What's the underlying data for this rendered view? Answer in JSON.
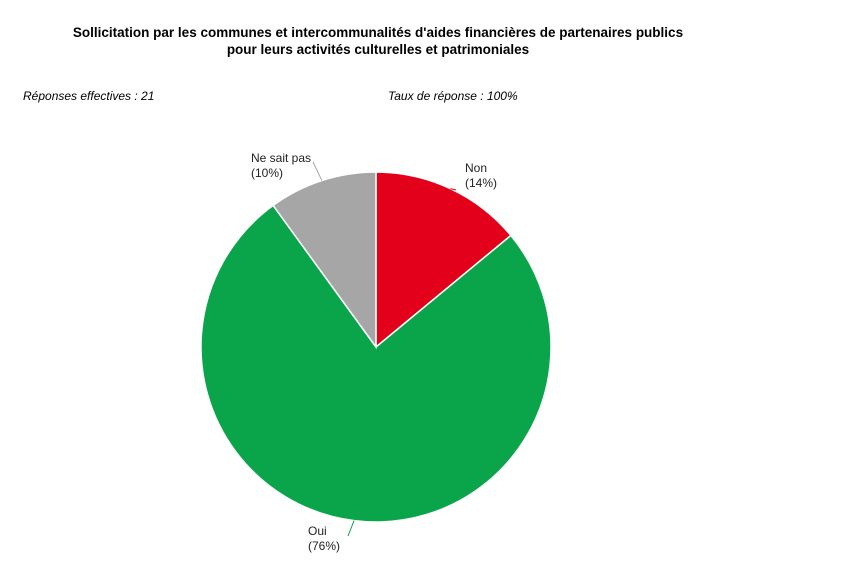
{
  "chart_data": {
    "type": "pie",
    "title_line1": "Sollicitation par les communes et intercommunalités d'aides financières de partenaires publics",
    "title_line2": "pour leurs activités culturelles et patrimoniales",
    "responses_label": "Réponses effectives : 21",
    "rate_label": "Taux de réponse : 100%",
    "slices": [
      {
        "label": "Non",
        "value": 14,
        "pct_text": "(14%)",
        "color": "#e2001a"
      },
      {
        "label": "Oui",
        "value": 76,
        "pct_text": "(76%)",
        "color": "#0aa54b"
      },
      {
        "label": "Ne sait pas",
        "value": 10,
        "pct_text": "(10%)",
        "color": "#a6a6a6"
      }
    ]
  }
}
